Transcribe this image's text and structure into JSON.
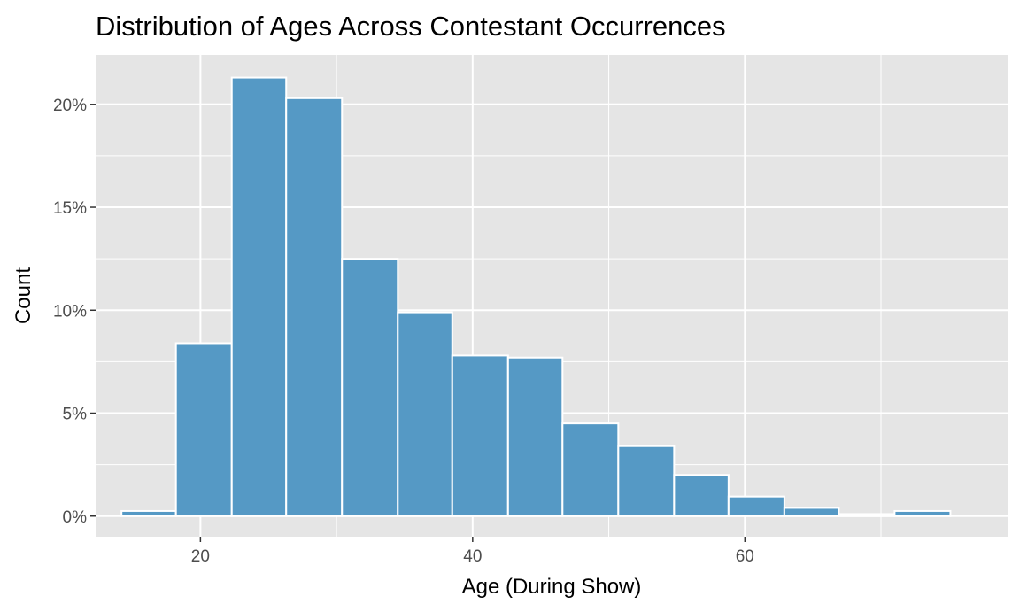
{
  "chart_data": {
    "type": "bar",
    "title": "Distribution of Ages Across Contestant Occurrences",
    "xlabel": "Age (During Show)",
    "ylabel": "Count",
    "bar_color": "#5599c5",
    "panel_color": "#e5e5e5",
    "grid": true,
    "xlim": [
      12.3,
      79.3
    ],
    "ylim": [
      -1.0,
      22.4
    ],
    "x_ticks": [
      20,
      40,
      60
    ],
    "x_tick_labels": [
      "20",
      "40",
      "60"
    ],
    "y_ticks": [
      0,
      5,
      10,
      15,
      20
    ],
    "y_tick_labels": [
      "0%",
      "5%",
      "10%",
      "15%",
      "20%"
    ],
    "bins": [
      {
        "x0": 14.2,
        "x1": 18.2,
        "value": 0.25
      },
      {
        "x0": 18.2,
        "x1": 22.3,
        "value": 8.4
      },
      {
        "x0": 22.3,
        "x1": 26.3,
        "value": 21.3
      },
      {
        "x0": 26.3,
        "x1": 30.4,
        "value": 20.3
      },
      {
        "x0": 30.4,
        "x1": 34.5,
        "value": 12.5
      },
      {
        "x0": 34.5,
        "x1": 38.5,
        "value": 9.9
      },
      {
        "x0": 38.5,
        "x1": 42.6,
        "value": 7.8
      },
      {
        "x0": 42.6,
        "x1": 46.6,
        "value": 7.7
      },
      {
        "x0": 46.6,
        "x1": 50.7,
        "value": 4.5
      },
      {
        "x0": 50.7,
        "x1": 54.8,
        "value": 3.4
      },
      {
        "x0": 54.8,
        "x1": 58.8,
        "value": 2.0
      },
      {
        "x0": 58.8,
        "x1": 62.9,
        "value": 0.95
      },
      {
        "x0": 62.9,
        "x1": 66.9,
        "value": 0.4
      },
      {
        "x0": 66.9,
        "x1": 71.0,
        "value": 0.1
      },
      {
        "x0": 71.0,
        "x1": 75.1,
        "value": 0.25
      }
    ]
  }
}
